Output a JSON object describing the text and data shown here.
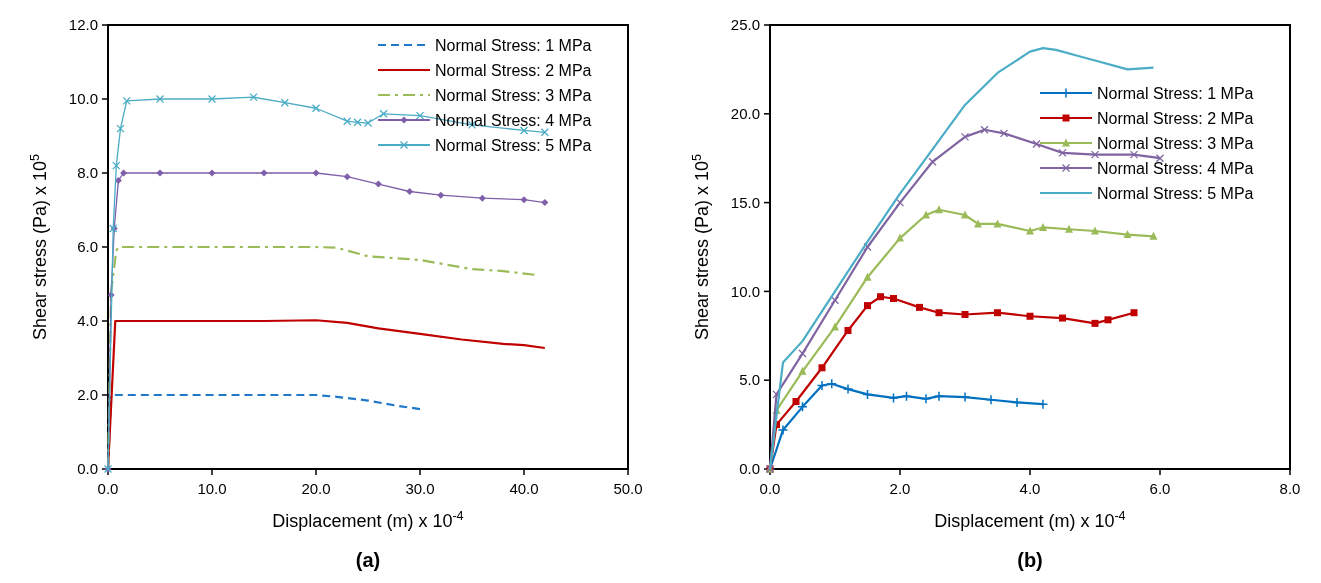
{
  "chart_data": [
    {
      "type": "line",
      "title": "(a)",
      "xlabel": "Displacement (m) x 10$^{-4}$",
      "ylabel": "Shear stress (Pa)  x 10$^{5}$",
      "xlim": [
        0,
        50
      ],
      "ylim": [
        0,
        12
      ],
      "xticks": [
        {
          "value": 0,
          "label": "0.0"
        },
        {
          "value": 10,
          "label": "10.0"
        },
        {
          "value": 20,
          "label": "20.0"
        },
        {
          "value": 30,
          "label": "30.0"
        },
        {
          "value": 40,
          "label": "40.0"
        },
        {
          "value": 50,
          "label": "50.0"
        }
      ],
      "yticks": [
        {
          "value": 0,
          "label": "0.0"
        },
        {
          "value": 2,
          "label": "2.0"
        },
        {
          "value": 4,
          "label": "4.0"
        },
        {
          "value": 6,
          "label": "6.0"
        },
        {
          "value": 8,
          "label": "8.0"
        },
        {
          "value": 10,
          "label": "10.0"
        },
        {
          "value": 12,
          "label": "12.0"
        }
      ],
      "legend": "top right",
      "grid": false,
      "series": [
        {
          "name": "Normal Stress: 1 MPa",
          "color": "#1f78c8",
          "line_style": "dashed",
          "marker": "none",
          "x": [
            0,
            0.3,
            5,
            10,
            15,
            20,
            22,
            25,
            28,
            30
          ],
          "values": [
            0,
            2,
            2,
            2,
            2,
            2,
            1.95,
            1.85,
            1.7,
            1.62
          ]
        },
        {
          "name": "Normal Stress: 2 MPa",
          "color": "#c00000",
          "line_style": "solid",
          "marker": "none",
          "x": [
            0,
            0.7,
            10,
            15,
            20,
            23,
            26,
            30,
            34,
            38,
            40,
            42
          ],
          "values": [
            0,
            4,
            4,
            4,
            4.02,
            3.95,
            3.8,
            3.65,
            3.5,
            3.38,
            3.35,
            3.27
          ]
        },
        {
          "name": "Normal Stress: 3 MPa",
          "color": "#9bbb59",
          "line_style": "dashdot",
          "marker": "none",
          "x": [
            0,
            0.3,
            0.8,
            1,
            10,
            20,
            22,
            25,
            30,
            35,
            38,
            41
          ],
          "values": [
            0,
            4.8,
            5.9,
            6,
            6,
            6,
            5.98,
            5.75,
            5.65,
            5.4,
            5.35,
            5.25
          ]
        },
        {
          "name": "Normal Stress: 4 MPa",
          "color": "#7f5fa9",
          "line_style": "solid",
          "marker": "diamond",
          "x": [
            0,
            0.3,
            0.6,
            1,
            1.5,
            5,
            10,
            15,
            20,
            23,
            26,
            29,
            32,
            36,
            40,
            42
          ],
          "values": [
            0,
            4.7,
            6.5,
            7.8,
            8,
            8,
            8,
            8,
            8,
            7.9,
            7.7,
            7.5,
            7.4,
            7.32,
            7.28,
            7.2
          ]
        },
        {
          "name": "Normal Stress: 5 MPa",
          "color": "#4bacc6",
          "line_style": "solid",
          "marker": "cross",
          "x": [
            0,
            0.5,
            0.8,
            1.2,
            1.8,
            5,
            10,
            14,
            17,
            20,
            23,
            24,
            25,
            26.5,
            30,
            35,
            40,
            42
          ],
          "values": [
            0,
            6.5,
            8.2,
            9.2,
            9.95,
            10,
            10,
            10.05,
            9.9,
            9.75,
            9.4,
            9.37,
            9.35,
            9.6,
            9.55,
            9.3,
            9.15,
            9.1
          ]
        }
      ]
    },
    {
      "type": "line",
      "title": "(b)",
      "xlabel": "Displacement (m) x 10$^{-4}$",
      "ylabel": "Shear stress (Pa)  x 10$^{5}$",
      "xlim": [
        0,
        8
      ],
      "ylim": [
        0,
        25
      ],
      "xticks": [
        {
          "value": 0,
          "label": "0.0"
        },
        {
          "value": 2,
          "label": "2.0"
        },
        {
          "value": 4,
          "label": "4.0"
        },
        {
          "value": 6,
          "label": "6.0"
        },
        {
          "value": 8,
          "label": "8.0"
        }
      ],
      "yticks": [
        {
          "value": 0,
          "label": "0.0"
        },
        {
          "value": 5,
          "label": "5.0"
        },
        {
          "value": 10,
          "label": "10.0"
        },
        {
          "value": 15,
          "label": "15.0"
        },
        {
          "value": 20,
          "label": "20.0"
        },
        {
          "value": 25,
          "label": "25.0"
        }
      ],
      "legend": "right",
      "grid": false,
      "series": [
        {
          "name": "Normal Stress: 1 MPa",
          "color": "#0070c0",
          "line_style": "solid",
          "marker": "plus",
          "x": [
            0,
            0.2,
            0.5,
            0.8,
            0.95,
            1.2,
            1.5,
            1.9,
            2.1,
            2.4,
            2.6,
            3,
            3.4,
            3.8,
            4.2
          ],
          "values": [
            0,
            2.2,
            3.5,
            4.7,
            4.8,
            4.5,
            4.2,
            4,
            4.1,
            3.95,
            4.1,
            4.05,
            3.9,
            3.75,
            3.65
          ]
        },
        {
          "name": "Normal Stress: 2 MPa",
          "color": "#c00000",
          "line_style": "solid",
          "marker": "square",
          "x": [
            0,
            0.1,
            0.4,
            0.8,
            1.2,
            1.5,
            1.7,
            1.9,
            2.3,
            2.6,
            3,
            3.5,
            4,
            4.5,
            5,
            5.2,
            5.6
          ],
          "values": [
            0,
            2.5,
            3.8,
            5.7,
            7.8,
            9.2,
            9.7,
            9.6,
            9.1,
            8.8,
            8.7,
            8.8,
            8.6,
            8.5,
            8.2,
            8.4,
            8.8
          ]
        },
        {
          "name": "Normal Stress: 3 MPa",
          "color": "#9bbb59",
          "line_style": "solid",
          "marker": "triangle",
          "x": [
            0,
            0.1,
            0.5,
            1,
            1.5,
            2,
            2.4,
            2.6,
            3,
            3.2,
            3.5,
            4,
            4.2,
            4.6,
            5,
            5.5,
            5.9
          ],
          "values": [
            0,
            3.3,
            5.5,
            8,
            10.8,
            13,
            14.3,
            14.6,
            14.3,
            13.8,
            13.8,
            13.4,
            13.6,
            13.5,
            13.4,
            13.2,
            13.1
          ]
        },
        {
          "name": "Normal Stress: 4 MPa",
          "color": "#8064a2",
          "line_style": "solid",
          "marker": "cross",
          "x": [
            0,
            0.1,
            0.5,
            1,
            1.5,
            2,
            2.5,
            3,
            3.3,
            3.6,
            4.1,
            4.5,
            5,
            5.6,
            6
          ],
          "values": [
            0,
            4.2,
            6.5,
            9.5,
            12.5,
            15,
            17.3,
            18.7,
            19.1,
            18.9,
            18.3,
            17.8,
            17.7,
            17.7,
            17.5
          ]
        },
        {
          "name": "Normal Stress: 5 MPa",
          "color": "#4bacc6",
          "line_style": "solid",
          "marker": "none",
          "x": [
            0,
            0.2,
            0.5,
            1,
            1.5,
            2,
            2.5,
            3,
            3.5,
            4,
            4.2,
            4.4,
            4.8,
            5,
            5.5,
            5.9
          ],
          "values": [
            0,
            6,
            7.2,
            10,
            12.8,
            15.5,
            18,
            20.5,
            22.3,
            23.5,
            23.7,
            23.6,
            23.2,
            23,
            22.5,
            22.6
          ]
        }
      ]
    }
  ]
}
